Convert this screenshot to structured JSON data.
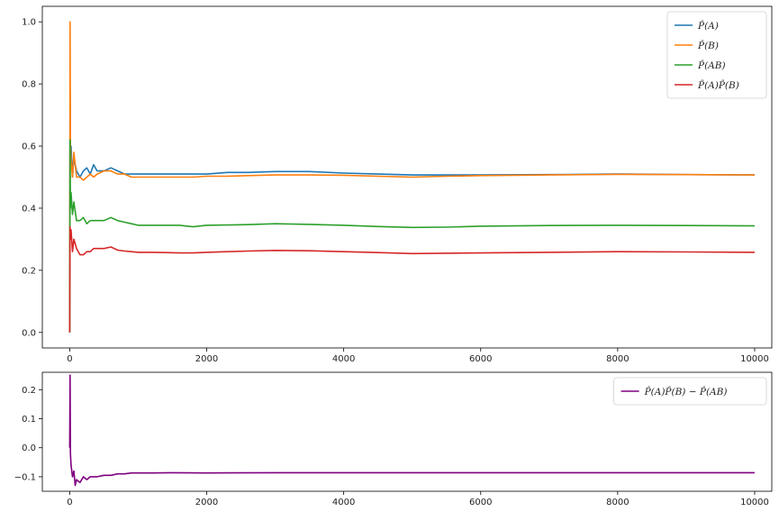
{
  "chart_data": [
    {
      "type": "line",
      "title": "",
      "xlabel": "",
      "ylabel": "",
      "xlim": [
        0,
        10000
      ],
      "ylim": [
        0.0,
        1.0
      ],
      "xticks": [
        0,
        2000,
        4000,
        6000,
        8000,
        10000
      ],
      "xtick_labels": [
        "0",
        "2000",
        "4000",
        "6000",
        "8000",
        "10000"
      ],
      "yticks": [
        0.0,
        0.2,
        0.4,
        0.6,
        0.8,
        1.0
      ],
      "ytick_labels": [
        "0.0",
        "0.2",
        "0.4",
        "0.6",
        "0.8",
        "1.0"
      ],
      "grid": false,
      "legend_position": "top-right",
      "series": [
        {
          "name": "P̂(A)",
          "color": "#1f77b4",
          "x": [
            0,
            5,
            10,
            20,
            40,
            60,
            100,
            150,
            200,
            250,
            300,
            350,
            400,
            500,
            600,
            700,
            800,
            900,
            1000,
            1200,
            1400,
            1600,
            1800,
            2000,
            2300,
            2600,
            3000,
            3500,
            4000,
            4500,
            5000,
            5500,
            6000,
            7000,
            8000,
            9000,
            10000
          ],
          "y": [
            0.0,
            0.78,
            0.55,
            0.6,
            0.5,
            0.56,
            0.52,
            0.5,
            0.52,
            0.53,
            0.51,
            0.54,
            0.52,
            0.52,
            0.53,
            0.52,
            0.51,
            0.51,
            0.51,
            0.51,
            0.51,
            0.51,
            0.51,
            0.51,
            0.515,
            0.515,
            0.518,
            0.518,
            0.513,
            0.51,
            0.507,
            0.507,
            0.507,
            0.508,
            0.51,
            0.508,
            0.507
          ]
        },
        {
          "name": "P̂(B)",
          "color": "#ff7f0e",
          "x": [
            0,
            5,
            10,
            20,
            40,
            60,
            100,
            150,
            200,
            250,
            300,
            350,
            400,
            500,
            600,
            700,
            800,
            900,
            1000,
            1200,
            1400,
            1600,
            1800,
            2000,
            2300,
            2600,
            3000,
            3500,
            4000,
            4500,
            5000,
            5500,
            6000,
            7000,
            8000,
            9000,
            10000
          ],
          "y": [
            0.0,
            1.0,
            0.6,
            0.55,
            0.5,
            0.58,
            0.5,
            0.5,
            0.49,
            0.5,
            0.51,
            0.5,
            0.51,
            0.52,
            0.52,
            0.51,
            0.51,
            0.5,
            0.5,
            0.5,
            0.5,
            0.5,
            0.5,
            0.503,
            0.503,
            0.505,
            0.507,
            0.507,
            0.506,
            0.503,
            0.5,
            0.503,
            0.505,
            0.507,
            0.509,
            0.508,
            0.507
          ]
        },
        {
          "name": "P̂(AB)",
          "color": "#2ca02c",
          "x": [
            0,
            5,
            10,
            20,
            40,
            60,
            100,
            150,
            200,
            250,
            300,
            350,
            400,
            500,
            600,
            700,
            800,
            900,
            1000,
            1200,
            1400,
            1600,
            1800,
            2000,
            2300,
            2600,
            3000,
            3500,
            4000,
            4500,
            5000,
            5500,
            6000,
            7000,
            8000,
            9000,
            10000
          ],
          "y": [
            0.0,
            0.62,
            0.4,
            0.45,
            0.38,
            0.42,
            0.36,
            0.36,
            0.37,
            0.35,
            0.36,
            0.36,
            0.36,
            0.36,
            0.37,
            0.36,
            0.355,
            0.35,
            0.345,
            0.345,
            0.345,
            0.345,
            0.34,
            0.345,
            0.346,
            0.347,
            0.35,
            0.348,
            0.345,
            0.341,
            0.338,
            0.339,
            0.342,
            0.344,
            0.345,
            0.344,
            0.343
          ]
        },
        {
          "name": "P̂(A)P̂(B)",
          "color": "#d62728",
          "x": [
            0,
            5,
            10,
            20,
            40,
            60,
            100,
            150,
            200,
            250,
            300,
            350,
            400,
            500,
            600,
            700,
            800,
            900,
            1000,
            1200,
            1400,
            1600,
            1800,
            2000,
            2300,
            2600,
            3000,
            3500,
            4000,
            4500,
            5000,
            5500,
            6000,
            7000,
            8000,
            9000,
            10000
          ],
          "y": [
            0.0,
            0.34,
            0.3,
            0.33,
            0.26,
            0.3,
            0.27,
            0.25,
            0.25,
            0.26,
            0.26,
            0.27,
            0.27,
            0.27,
            0.275,
            0.265,
            0.262,
            0.26,
            0.258,
            0.258,
            0.257,
            0.256,
            0.256,
            0.258,
            0.26,
            0.262,
            0.264,
            0.263,
            0.26,
            0.257,
            0.254,
            0.255,
            0.256,
            0.258,
            0.26,
            0.259,
            0.258
          ]
        }
      ]
    },
    {
      "type": "line",
      "title": "",
      "xlabel": "",
      "ylabel": "",
      "xlim": [
        0,
        10000
      ],
      "ylim": [
        -0.15,
        0.26
      ],
      "xticks": [
        0,
        2000,
        4000,
        6000,
        8000,
        10000
      ],
      "xtick_labels": [
        "0",
        "2000",
        "4000",
        "6000",
        "8000",
        "10000"
      ],
      "yticks": [
        -0.1,
        0.0,
        0.1,
        0.2
      ],
      "ytick_labels": [
        "−0.1",
        "0.0",
        "0.1",
        "0.2"
      ],
      "grid": false,
      "legend_position": "top-right",
      "series": [
        {
          "name": "P̂(A)P̂(B) − P̂(AB)",
          "color": "#800080",
          "x": [
            0,
            5,
            10,
            20,
            40,
            60,
            80,
            100,
            150,
            200,
            250,
            300,
            400,
            500,
            600,
            700,
            800,
            900,
            1000,
            1200,
            1500,
            2000,
            3000,
            4000,
            5000,
            6000,
            7000,
            8000,
            9000,
            10000
          ],
          "y": [
            0.0,
            0.25,
            -0.02,
            -0.06,
            -0.1,
            -0.08,
            -0.13,
            -0.11,
            -0.12,
            -0.1,
            -0.11,
            -0.1,
            -0.1,
            -0.095,
            -0.095,
            -0.09,
            -0.09,
            -0.087,
            -0.087,
            -0.087,
            -0.086,
            -0.087,
            -0.086,
            -0.086,
            -0.086,
            -0.086,
            -0.086,
            -0.086,
            -0.086,
            -0.086
          ]
        }
      ]
    }
  ]
}
